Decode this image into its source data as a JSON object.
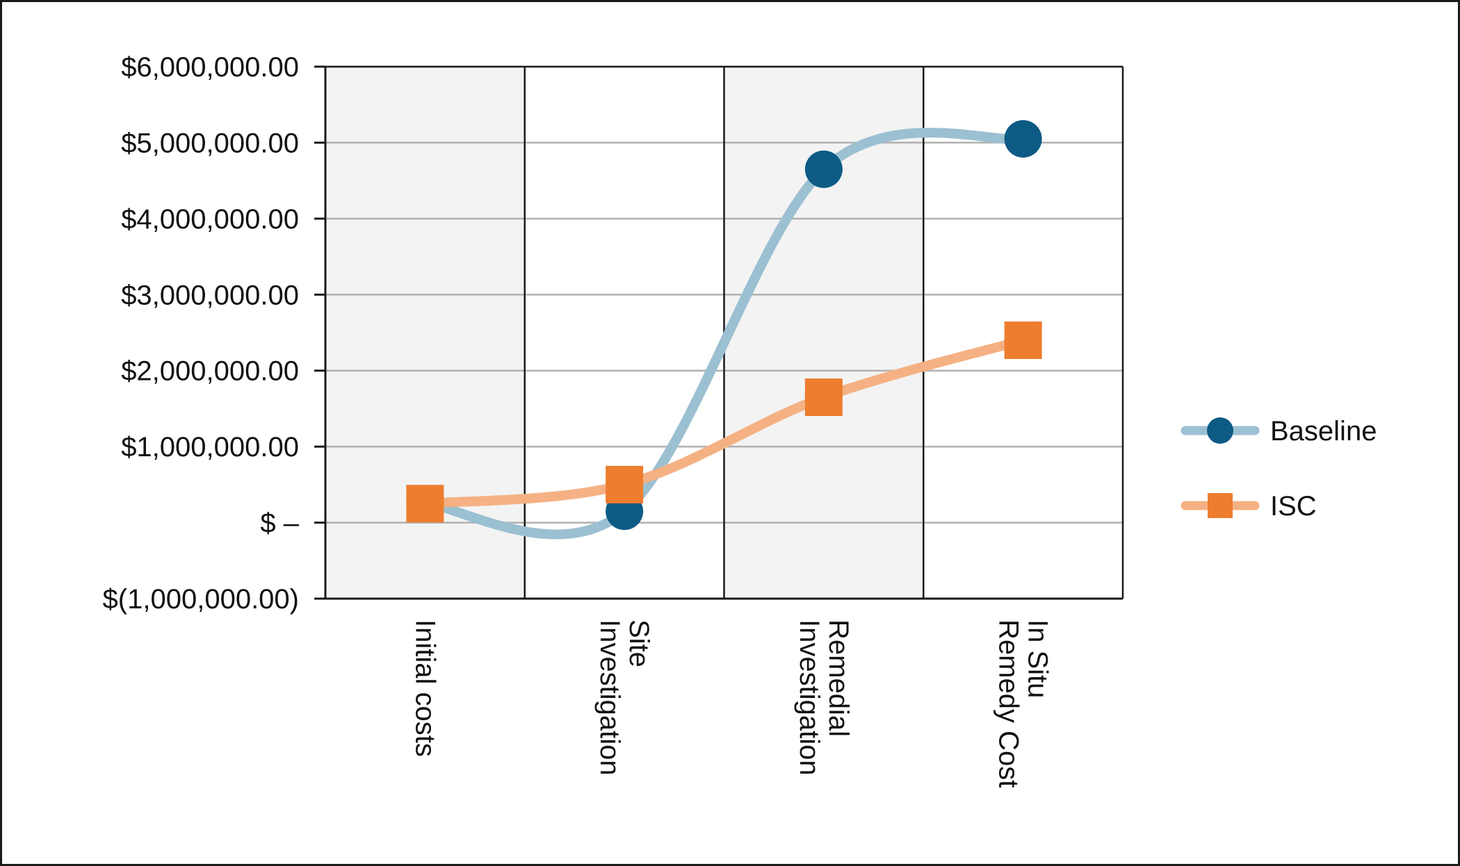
{
  "chart_data": {
    "type": "line",
    "categories": [
      [
        "Initial costs"
      ],
      [
        "Site",
        "Investigation"
      ],
      [
        "Remedial",
        "Investigation"
      ],
      [
        "In Situ",
        "Remedy Cost"
      ]
    ],
    "series": [
      {
        "name": "Baseline",
        "values": [
          250000,
          150000,
          4650000,
          5050000
        ],
        "marker": "circle",
        "line_color": "#9bc0d1",
        "marker_color": "#0d5b85"
      },
      {
        "name": "ISC",
        "values": [
          250000,
          500000,
          1650000,
          2400000
        ],
        "marker": "square",
        "line_color": "#f5b183",
        "marker_color": "#ee7d2f"
      }
    ],
    "ylim": [
      -1000000,
      6000000
    ],
    "y_ticks": [
      {
        "value": 6000000,
        "label": "$6,000,000.00"
      },
      {
        "value": 5000000,
        "label": "$5,000,000.00"
      },
      {
        "value": 4000000,
        "label": "$4,000,000.00"
      },
      {
        "value": 3000000,
        "label": "$3,000,000.00"
      },
      {
        "value": 2000000,
        "label": "$2,000,000.00"
      },
      {
        "value": 1000000,
        "label": "$1,000,000.00"
      },
      {
        "value": 0,
        "label": "$ –"
      },
      {
        "value": -1000000,
        "label": "$(1,000,000.00)"
      }
    ],
    "grid": true,
    "alternating_bands": true,
    "band_color": "#f3f3f3",
    "legend_position": "right",
    "smooth": true,
    "xlabel": "",
    "ylabel": ""
  }
}
